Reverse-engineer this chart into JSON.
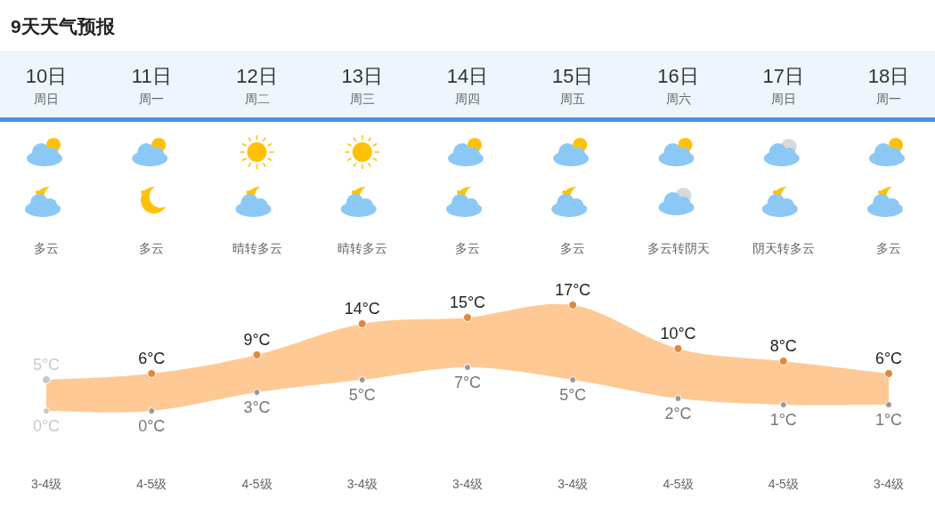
{
  "chart_data": {
    "type": "area",
    "title": "9天天气预报",
    "categories": [
      "10日",
      "11日",
      "12日",
      "13日",
      "14日",
      "15日",
      "16日",
      "17日",
      "18日"
    ],
    "series": [
      {
        "color": "#fec994",
        "colors": [
          "#c8c8c8",
          "#e0893e",
          "#e0893e",
          "#e0893e",
          "#e0893e",
          "#e0893e",
          "#e0893e",
          "#e0893e",
          "#e0893e"
        ],
        "values": [
          5,
          6,
          9,
          14,
          15,
          17,
          10,
          8,
          6
        ],
        "value_labels": [
          "5°C",
          "6°C",
          "9°C",
          "14°C",
          "15°C",
          "17°C",
          "10°C",
          "8°C",
          "6°C"
        ]
      },
      {
        "type": "scatter",
        "colors": [
          "#c8c8c8",
          "#999999",
          "#999999",
          "#999999",
          "#999999",
          "#999999",
          "#999999",
          "#999999",
          "#999999"
        ],
        "values": [
          0,
          0,
          3,
          5,
          7,
          5,
          2,
          1,
          1
        ],
        "value_labels": [
          "0°C",
          "0°C",
          "3°C",
          "5°C",
          "7°C",
          "5°C",
          "2°C",
          "1°C",
          "1°C"
        ]
      }
    ],
    "marker": "circle",
    "annotations": [
      "周日",
      "周一",
      "周二",
      "周三",
      "周四",
      "周五",
      "周六",
      "周日",
      "周一",
      "多云",
      "多云",
      "晴转多云",
      "晴转多云",
      "多云",
      "多云",
      "多云转阴天",
      "阴天转多云",
      "多云",
      "3-4级",
      "4-5级",
      "4-5级",
      "3-4级",
      "3-4级",
      "3-4级",
      "4-5级",
      "4-5级",
      "3-4级"
    ]
  }
}
